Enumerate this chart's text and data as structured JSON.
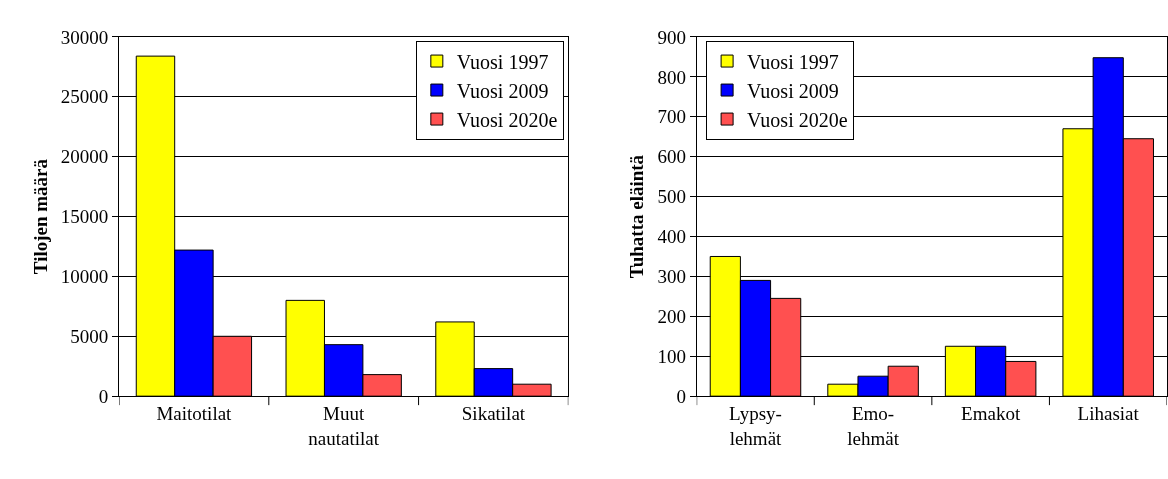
{
  "chart_data": [
    {
      "type": "bar",
      "ylabel": "Tilojen määrä",
      "categories": [
        "Maitotilat",
        "Muut\nnautatilat",
        "Sikatilat"
      ],
      "series": [
        {
          "name": "Vuosi 1997",
          "color": "#ffff00",
          "values": [
            28400,
            8000,
            6200
          ]
        },
        {
          "name": "Vuosi 2009",
          "color": "#0000ff",
          "values": [
            12200,
            4300,
            2300
          ]
        },
        {
          "name": "Vuosi 2020e",
          "color": "#ff5050",
          "values": [
            5000,
            1800,
            1000
          ]
        }
      ],
      "ylim": [
        0,
        30000
      ],
      "yticks": [
        0,
        5000,
        10000,
        15000,
        20000,
        25000,
        30000
      ],
      "grid": "y",
      "legend": "top right"
    },
    {
      "type": "bar",
      "ylabel": "Tuhatta eläintä",
      "categories": [
        "Lypsy-\nlehmät",
        "Emo-\nlehmät",
        "Emakot",
        "Lihasiat"
      ],
      "series": [
        {
          "name": "Vuosi 1997",
          "color": "#ffff00",
          "values": [
            350,
            30,
            125,
            670
          ]
        },
        {
          "name": "Vuosi 2009",
          "color": "#0000ff",
          "values": [
            290,
            50,
            125,
            848
          ]
        },
        {
          "name": "Vuosi 2020e",
          "color": "#ff5050",
          "values": [
            245,
            75,
            87,
            645
          ]
        }
      ],
      "ylim": [
        0,
        900
      ],
      "yticks": [
        0,
        100,
        200,
        300,
        400,
        500,
        600,
        700,
        800,
        900
      ],
      "grid": "y",
      "legend": "top left"
    }
  ]
}
